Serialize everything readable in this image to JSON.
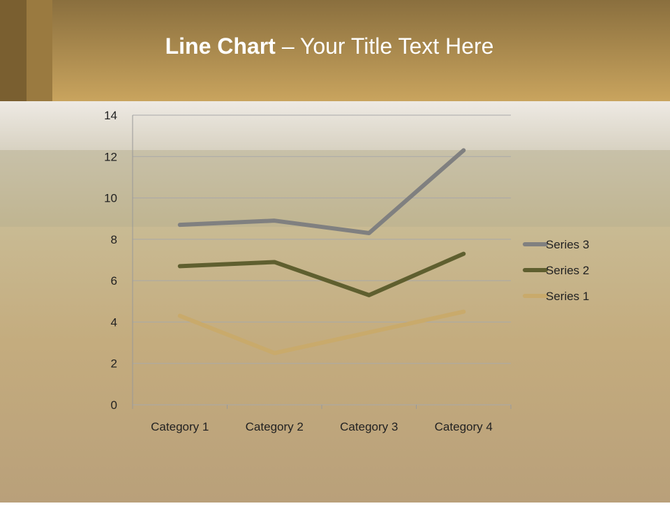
{
  "chart_data": {
    "type": "line",
    "title": [
      "Line Chart",
      "– Your Title Text Here"
    ],
    "categories": [
      "Category 1",
      "Category 2",
      "Category 3",
      "Category 4"
    ],
    "series": [
      {
        "name": "Series 1",
        "color": "#c9aa6b",
        "values": [
          4.3,
          2.5,
          3.5,
          4.5
        ]
      },
      {
        "name": "Series 2",
        "color": "#5f5f2f",
        "values": [
          6.7,
          6.9,
          5.3,
          7.3
        ]
      },
      {
        "name": "Series 3",
        "color": "#808080",
        "values": [
          8.7,
          8.9,
          8.3,
          12.3
        ]
      }
    ],
    "ylim": [
      0,
      14
    ],
    "yticks": [
      0,
      2,
      4,
      6,
      8,
      10,
      12,
      14
    ],
    "grid": true,
    "legend": "right"
  }
}
